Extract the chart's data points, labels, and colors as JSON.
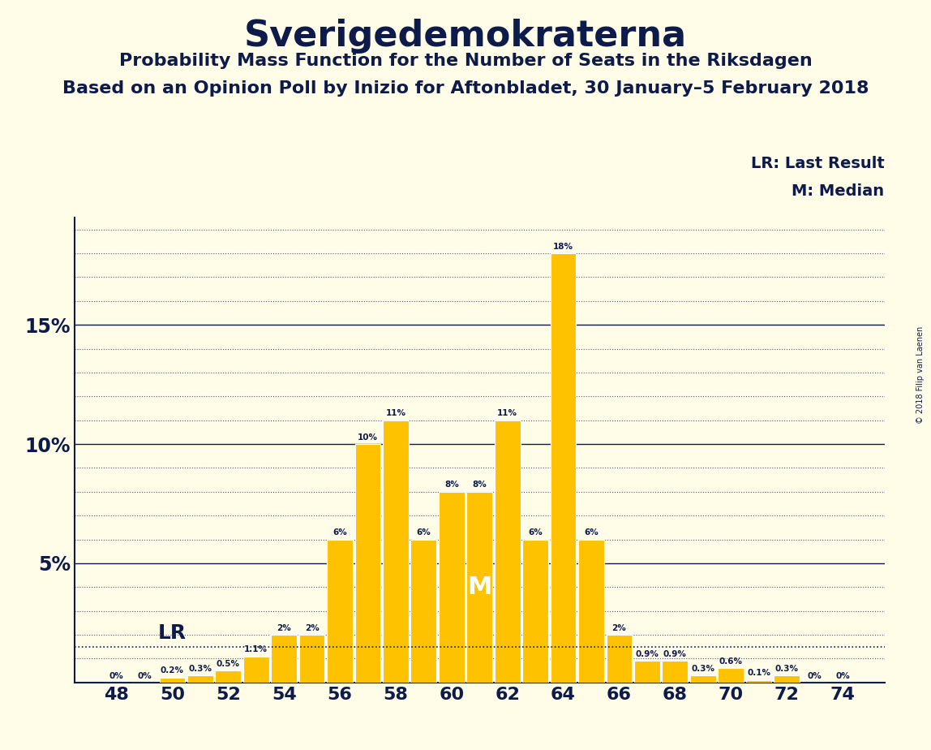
{
  "title": "Sverigedemokraterna",
  "subtitle1": "Probability Mass Function for the Number of Seats in the Riksdagen",
  "subtitle2": "Based on an Opinion Poll by Inizio for Aftonbladet, 30 January–5 February 2018",
  "copyright": "© 2018 Filip van Laenen",
  "seats": [
    48,
    49,
    50,
    51,
    52,
    53,
    54,
    55,
    56,
    57,
    58,
    59,
    60,
    61,
    62,
    63,
    64,
    65,
    66,
    67,
    68,
    69,
    70,
    71,
    72,
    73,
    74
  ],
  "probs": [
    0.0,
    0.0,
    0.2,
    0.3,
    0.5,
    1.1,
    2.0,
    2.0,
    6.0,
    10.0,
    11.0,
    6.0,
    8.0,
    8.0,
    11.0,
    6.0,
    18.0,
    6.0,
    2.0,
    0.9,
    0.9,
    0.3,
    0.6,
    0.1,
    0.3,
    0.0,
    0.0
  ],
  "labels": [
    "0%",
    "0%",
    "0.2%",
    "0.3%",
    "0.5%",
    "1.1%",
    "2%",
    "2%",
    "6%",
    "10%",
    "11%",
    "6%",
    "8%",
    "8%",
    "11%",
    "6%",
    "18%",
    "6%",
    "2%",
    "0.9%",
    "0.9%",
    "0.3%",
    "0.6%",
    "0.1%",
    "0.3%",
    "0%",
    "0%"
  ],
  "lr_value": 1.5,
  "median_seat": 61,
  "bar_color": "#FFC200",
  "background_color": "#FFFDE8",
  "text_color": "#0D1B4B",
  "lr_label": "LR: Last Result",
  "median_label": "M: Median",
  "median_text": "M",
  "lr_text": "LR",
  "ylim_max": 19.5,
  "major_yticks": [
    0,
    5,
    10,
    15
  ],
  "major_ytick_labels": [
    "",
    "5%",
    "10%",
    "15%"
  ],
  "minor_ytick_count": 4,
  "bar_width": 0.92
}
